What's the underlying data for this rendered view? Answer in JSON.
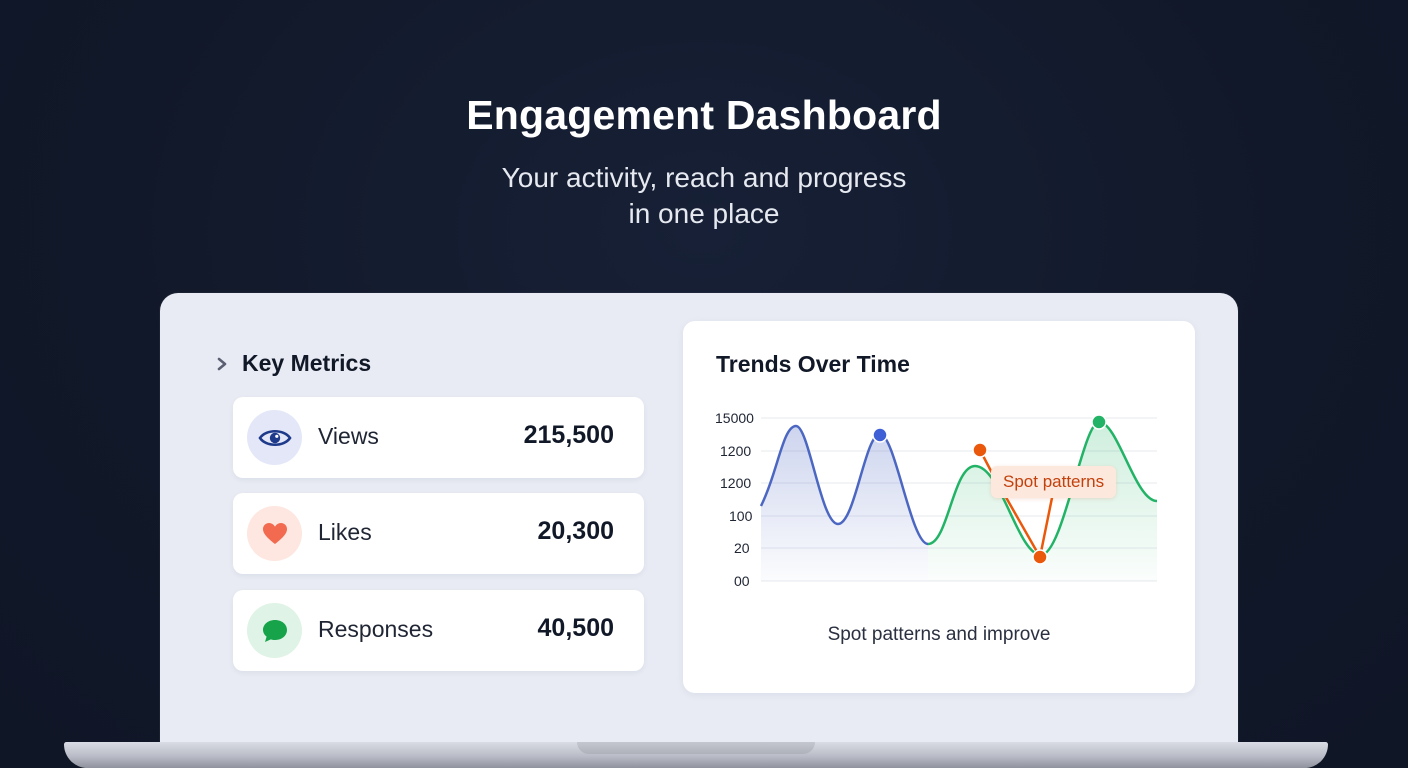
{
  "header": {
    "title": "Engagement Dashboard",
    "subtitle_line1": "Your activity, reach and progress",
    "subtitle_line2": "in one place"
  },
  "metrics": {
    "title": "Key Metrics",
    "items": [
      {
        "label": "Views",
        "value": "215,500",
        "icon": "eye-icon",
        "icon_color": "#1e3a8a",
        "icon_bg": "#e3e7f7"
      },
      {
        "label": "Likes",
        "value": "20,300",
        "icon": "heart-icon",
        "icon_color": "#f26a4f",
        "icon_bg": "#fde7e0"
      },
      {
        "label": "Responses",
        "value": "40,500",
        "icon": "chat-bubble-icon",
        "icon_color": "#16a34a",
        "icon_bg": "#dff3e6"
      }
    ]
  },
  "trends": {
    "title": "Trends Over Time",
    "callout": "Spot patterns",
    "caption": "Spot patterns and improve"
  },
  "chart_data": {
    "type": "line",
    "y_tick_labels": [
      "15000",
      "1200",
      "1200",
      "100",
      "20",
      "00"
    ],
    "series": [
      {
        "color": "#4c67c2",
        "style": "smooth area"
      },
      {
        "color": "#22b366",
        "style": "smooth area"
      },
      {
        "color": "#ea580c",
        "style": "straight segments"
      }
    ],
    "grid": true,
    "colors": {
      "blue": "#4c67c2",
      "green": "#22b366",
      "orange": "#ea580c"
    }
  }
}
